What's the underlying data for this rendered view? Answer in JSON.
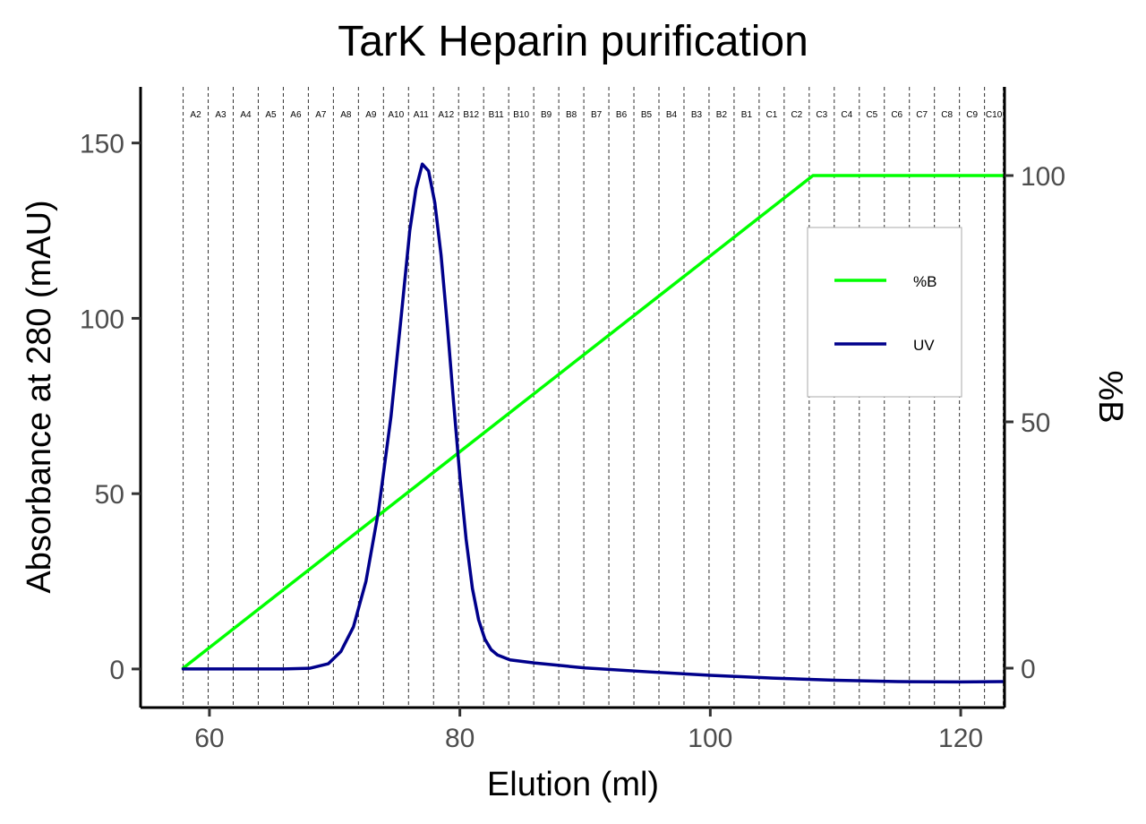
{
  "chart_data": {
    "type": "line",
    "title": "TarK Heparin purification",
    "xlabel": "Elution (ml)",
    "ylabel": "Absorbance at 280 (mAU)",
    "y2label": "%B",
    "xlim": [
      54.5,
      123.5
    ],
    "ylim": [
      -11,
      166
    ],
    "y2lim": [
      -8,
      118
    ],
    "x_ticks": [
      60,
      80,
      100,
      120
    ],
    "y_ticks": [
      0,
      50,
      100,
      150
    ],
    "y2_ticks": [
      0,
      50,
      100
    ],
    "grid": false,
    "fractions": {
      "boundaries": [
        57.9,
        59.9,
        61.9,
        63.9,
        65.9,
        67.9,
        69.9,
        71.9,
        73.9,
        75.9,
        77.9,
        79.9,
        81.9,
        83.9,
        85.9,
        87.9,
        89.9,
        91.9,
        93.9,
        95.9,
        97.9,
        99.9,
        101.9,
        103.9,
        105.9,
        107.9,
        109.9,
        111.9,
        113.9,
        115.9,
        117.9,
        119.9,
        121.9,
        123.4
      ],
      "labels": [
        "A2",
        "A3",
        "A4",
        "A5",
        "A6",
        "A7",
        "A8",
        "A9",
        "A10",
        "A11",
        "A12",
        "B12",
        "B11",
        "B10",
        "B9",
        "B8",
        "B7",
        "B6",
        "B5",
        "B4",
        "B3",
        "B2",
        "B1",
        "C1",
        "C2",
        "C3",
        "C4",
        "C5",
        "C6",
        "C7",
        "C8",
        "C9",
        "C10"
      ]
    },
    "legend": {
      "placement": "right",
      "entries": [
        {
          "name": "%B",
          "color": "#00ff00"
        },
        {
          "name": "UV",
          "color": "#00008b"
        }
      ]
    },
    "series": [
      {
        "name": "%B",
        "axis": "right",
        "color": "#00ff00",
        "x": [
          57.9,
          108.2,
          123.4
        ],
        "y": [
          0,
          100,
          100
        ]
      },
      {
        "name": "UV",
        "axis": "left",
        "color": "#00008b",
        "x": [
          57.9,
          62,
          66,
          68,
          69.5,
          70.5,
          71.5,
          72.5,
          73.5,
          74.5,
          75.3,
          76,
          76.5,
          77,
          77.5,
          78,
          78.5,
          79,
          79.5,
          80,
          80.5,
          81,
          81.5,
          82,
          82.5,
          83,
          84,
          86,
          90,
          95,
          100,
          105,
          110,
          115,
          120,
          123.4
        ],
        "y": [
          0,
          0,
          0,
          0.2,
          1.5,
          5,
          12,
          25,
          45,
          72,
          100,
          125,
          137,
          144,
          142,
          133,
          118,
          98,
          76,
          55,
          37,
          23,
          14,
          8.5,
          5.5,
          4,
          2.6,
          1.7,
          0.3,
          -0.8,
          -1.8,
          -2.6,
          -3.2,
          -3.6,
          -3.7,
          -3.6
        ]
      }
    ]
  }
}
